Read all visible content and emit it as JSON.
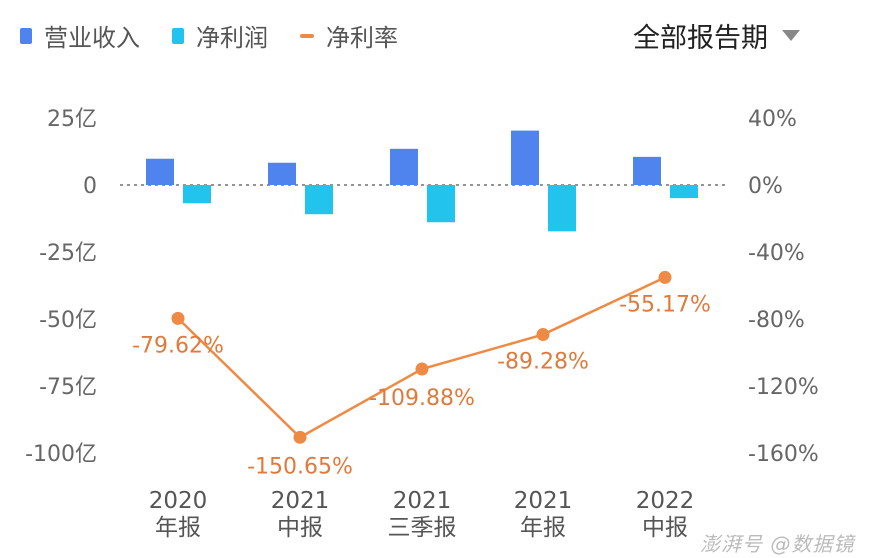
{
  "legend": [
    {
      "label": "营业收入",
      "color": "#4f84ee",
      "shape": "bar"
    },
    {
      "label": "净利润",
      "color": "#22c4ee",
      "shape": "bar"
    },
    {
      "label": "净利率",
      "color": "#ef8a44",
      "shape": "line"
    }
  ],
  "period_selector": {
    "label": "全部报告期",
    "icon": "triangle-down-icon"
  },
  "watermark": "澎湃号 @数据镜",
  "chart_data": {
    "type": "bar+line",
    "categories": [
      [
        "2020",
        "年报"
      ],
      [
        "2021",
        "中报"
      ],
      [
        "2021",
        "三季报"
      ],
      [
        "2021",
        "年报"
      ],
      [
        "2022",
        "中报"
      ]
    ],
    "left_axis": {
      "ticks": [
        "25亿",
        "0",
        "-25亿",
        "-50亿",
        "-75亿",
        "-100亿"
      ],
      "values": [
        25,
        0,
        -25,
        -50,
        -75,
        -100
      ],
      "range": [
        -100,
        25
      ],
      "unit": "亿"
    },
    "right_axis": {
      "ticks": [
        "40%",
        "0%",
        "-40%",
        "-80%",
        "-120%",
        "-160%"
      ],
      "values": [
        40,
        0,
        -40,
        -80,
        -120,
        -160
      ],
      "range": [
        -160,
        40
      ],
      "unit": "%"
    },
    "series": [
      {
        "name": "营业收入",
        "type": "bar",
        "axis": "left",
        "values": [
          9.8,
          8.3,
          13.5,
          20.3,
          10.5
        ]
      },
      {
        "name": "净利润",
        "type": "bar",
        "axis": "left",
        "values": [
          -6.8,
          -10.9,
          -13.9,
          -17.3,
          -4.9
        ]
      },
      {
        "name": "净利率",
        "type": "line",
        "axis": "right",
        "values": [
          -79.62,
          -150.65,
          -109.88,
          -89.28,
          -55.17
        ],
        "labels": [
          "-79.62%",
          "-150.65%",
          "-109.88%",
          "-89.28%",
          "-55.17%"
        ]
      }
    ],
    "zero_line": "dotted",
    "grid": false
  }
}
